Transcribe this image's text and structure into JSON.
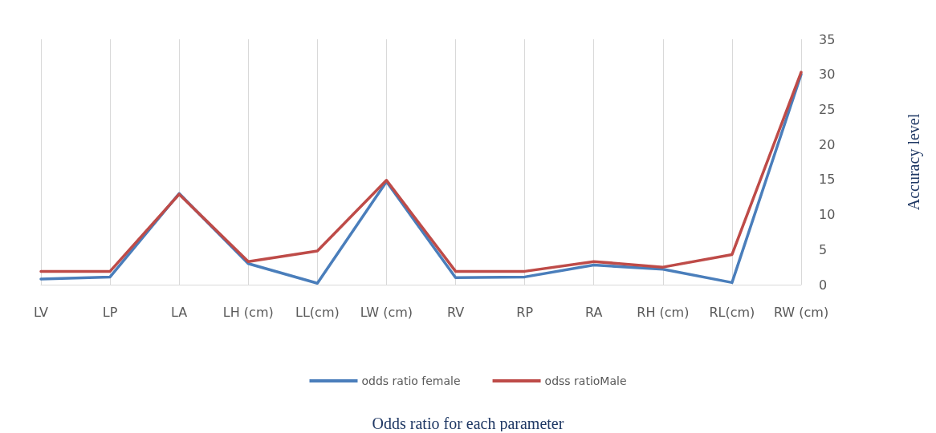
{
  "chart_data": {
    "type": "line",
    "title": "Odds ratio for each parameter",
    "ylabel": "Accuracy level",
    "categories": [
      "LV",
      "LP",
      "LA",
      "LH (cm)",
      "LL(cm)",
      "LW (cm)",
      "RV",
      "RP",
      "RA",
      "RH (cm)",
      "RL(cm)",
      "RW (cm)"
    ],
    "series": [
      {
        "name": "odds ratio female",
        "color": "#4a7ebb",
        "values": [
          0.8,
          1.1,
          13,
          3,
          0.2,
          14.7,
          1,
          1.1,
          2.8,
          2.2,
          0.3,
          30
        ]
      },
      {
        "name": "odss ratioMale",
        "color": "#be4b48",
        "values": [
          1.9,
          1.9,
          12.9,
          3.3,
          4.8,
          14.9,
          1.9,
          1.9,
          3.3,
          2.5,
          4.3,
          30.3
        ]
      }
    ],
    "ylim": [
      0,
      35
    ],
    "yticks": [
      0,
      5,
      10,
      15,
      20,
      25,
      30,
      35
    ],
    "grid": "x",
    "legend": "bottom",
    "marker": "none",
    "line_style": "solid"
  }
}
